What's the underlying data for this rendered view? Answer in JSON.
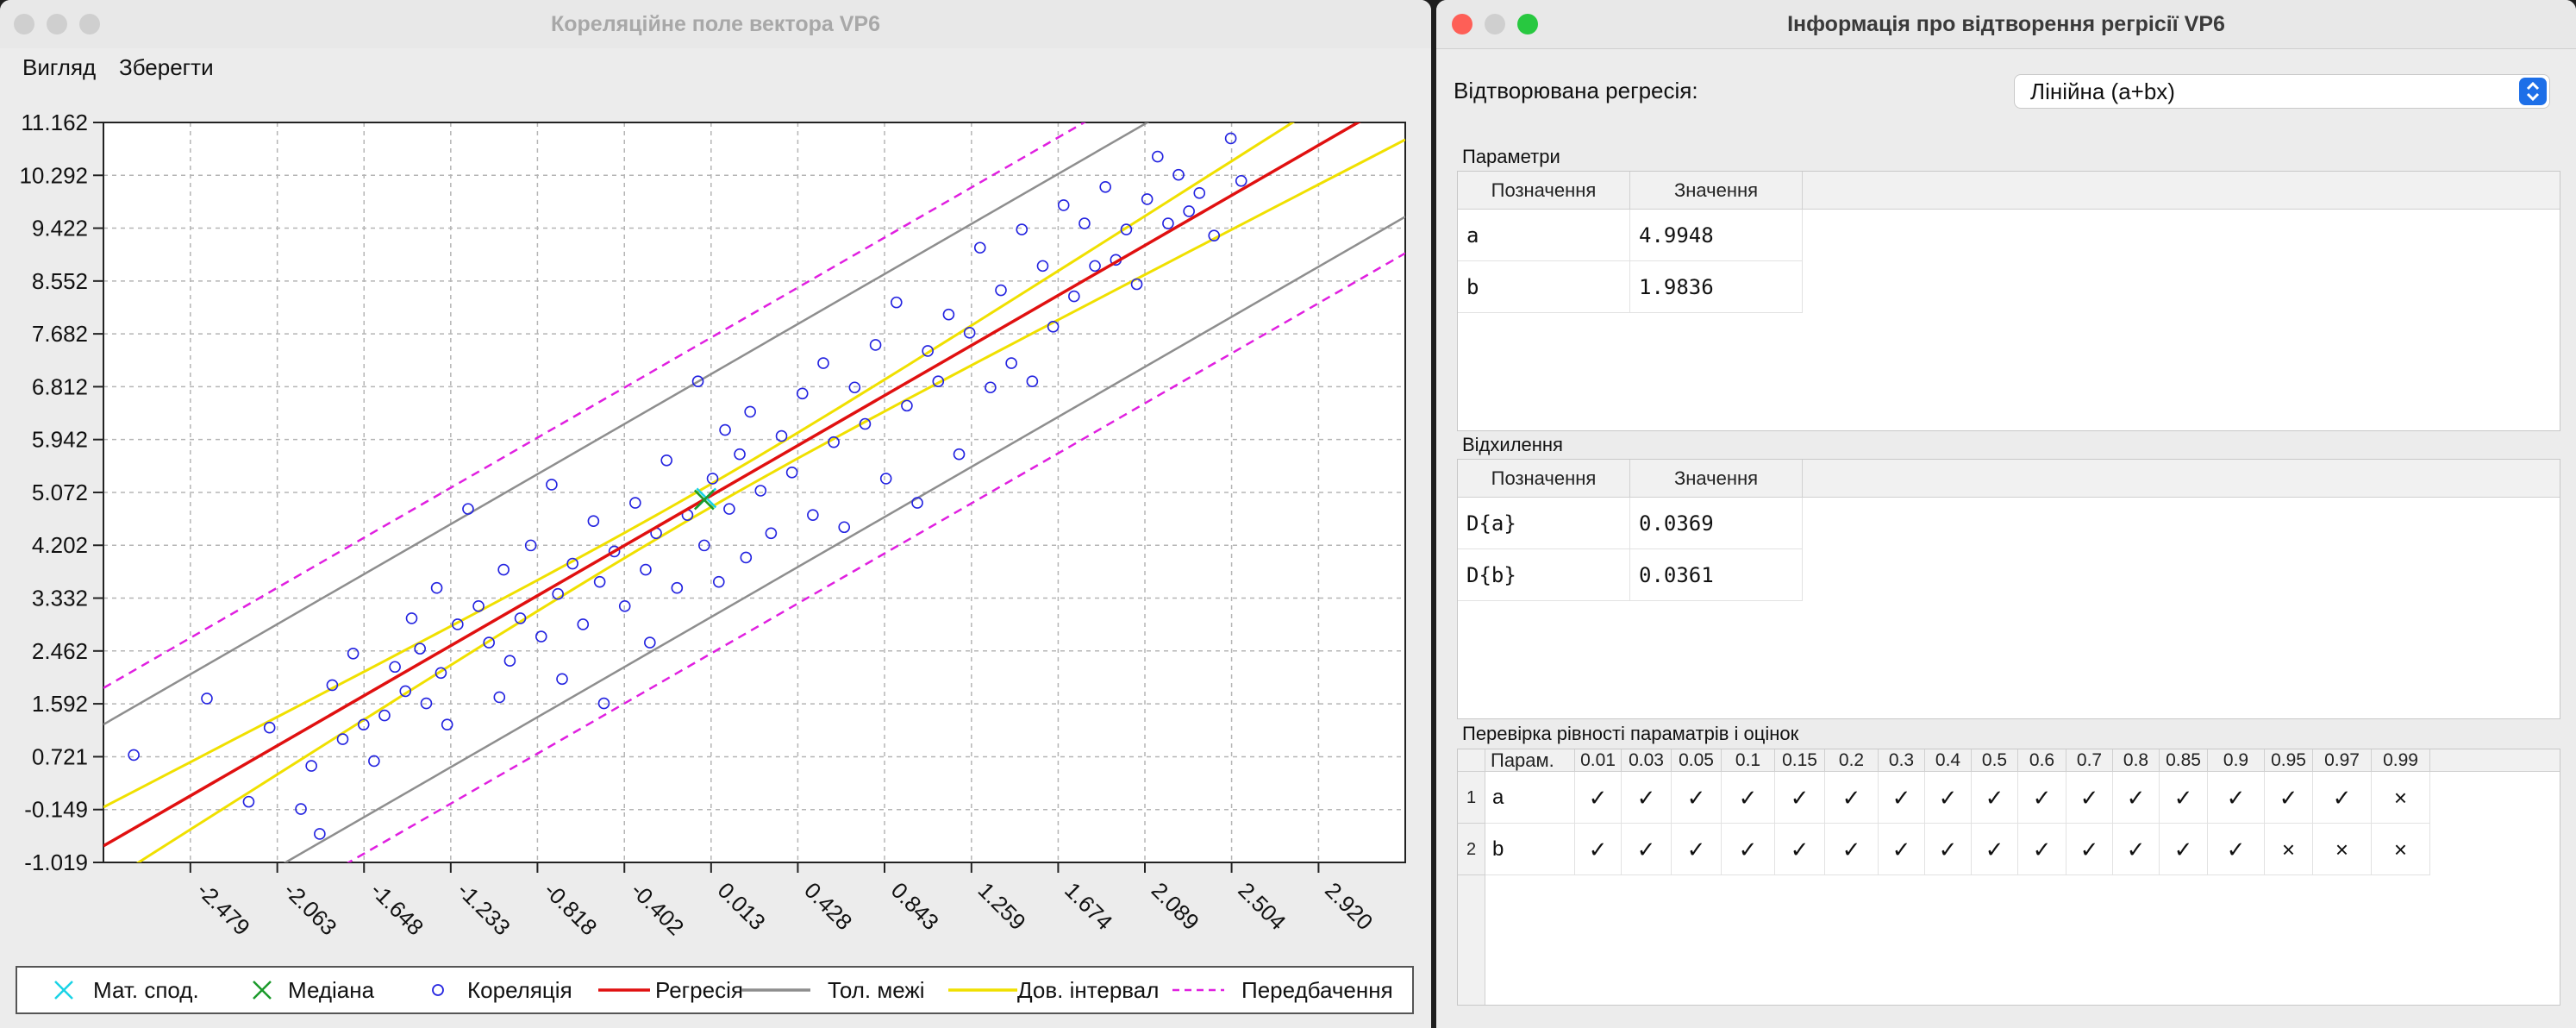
{
  "left_window": {
    "title": "Кореляційне поле вектора VP6",
    "menu": [
      "Вигляд",
      "Зберегти"
    ]
  },
  "right_window": {
    "title": "Інформація про відтворення регрісії VP6",
    "regression_label": "Відтворювана регресія:",
    "regression_value": "Лінійна (a+bx)"
  },
  "params_section": {
    "title": "Параметри",
    "headers": [
      "Позначення",
      "Значення"
    ],
    "rows": [
      [
        "a",
        "4.9948"
      ],
      [
        "b",
        "1.9836"
      ]
    ]
  },
  "deviation_section": {
    "title": "Відхилення",
    "headers": [
      "Позначення",
      "Значення"
    ],
    "rows": [
      [
        "D{a}",
        "0.0369"
      ],
      [
        "D{b}",
        "0.0361"
      ]
    ]
  },
  "check_section": {
    "title": "Перевірка рівності параматрів і оцінок",
    "param_header": "Парам.",
    "levels": [
      "0.01",
      "0.03",
      "0.05",
      "0.1",
      "0.15",
      "0.2",
      "0.3",
      "0.4",
      "0.5",
      "0.6",
      "0.7",
      "0.8",
      "0.85",
      "0.9",
      "0.95",
      "0.97",
      "0.99"
    ],
    "rows": [
      {
        "index": "1",
        "param": "a",
        "marks": [
          "✓",
          "✓",
          "✓",
          "✓",
          "✓",
          "✓",
          "✓",
          "✓",
          "✓",
          "✓",
          "✓",
          "✓",
          "✓",
          "✓",
          "✓",
          "✓",
          "×"
        ]
      },
      {
        "index": "2",
        "param": "b",
        "marks": [
          "✓",
          "✓",
          "✓",
          "✓",
          "✓",
          "✓",
          "✓",
          "✓",
          "✓",
          "✓",
          "✓",
          "✓",
          "✓",
          "✓",
          "×",
          "×",
          "×"
        ]
      }
    ]
  },
  "legend": [
    {
      "label": "Мат. спод.",
      "symbol": "x-cross",
      "color": "#19d3e6"
    },
    {
      "label": "Медіана",
      "symbol": "x-cross",
      "color": "#1a9a2a"
    },
    {
      "label": "Кореляція",
      "symbol": "circle",
      "color": "#2323e0"
    },
    {
      "label": "Регресія",
      "symbol": "line",
      "color": "#e01010"
    },
    {
      "label": "Тол. межі",
      "symbol": "line",
      "color": "#8e8e8e"
    },
    {
      "label": "Дов. інтервал",
      "symbol": "line",
      "color": "#f0e000"
    },
    {
      "label": "Передбачення",
      "symbol": "dashed",
      "color": "#e020e0"
    }
  ],
  "chart_data": {
    "type": "scatter",
    "x_ticks": [
      "-2.479",
      "-2.063",
      "-1.648",
      "-1.233",
      "-0.818",
      "-0.402",
      "0.013",
      "0.428",
      "0.843",
      "1.259",
      "1.674",
      "2.089",
      "2.504",
      "2.920"
    ],
    "y_ticks": [
      "11.162",
      "10.292",
      "9.422",
      "8.552",
      "7.682",
      "6.812",
      "5.942",
      "5.072",
      "4.202",
      "3.332",
      "2.462",
      "1.592",
      "0.721",
      "-0.149",
      "-1.019"
    ],
    "xlim": [
      -2.895,
      3.335
    ],
    "ylim": [
      -1.019,
      11.162
    ],
    "grid": true,
    "regression": {
      "a": 4.9948,
      "b": 1.9836
    },
    "mean": {
      "x": -0.01,
      "y": 4.98
    },
    "median": {
      "x": -0.02,
      "y": 4.95
    },
    "tolerance_offset": 2.0,
    "confidence_halfwidth_min": 0.19,
    "prediction_offset": 2.6,
    "series": [
      {
        "name": "Кореляція",
        "points": [
          [
            -2.75,
            0.75
          ],
          [
            -2.4,
            1.68
          ],
          [
            -2.2,
            -0.02
          ],
          [
            -2.1,
            1.2
          ],
          [
            -1.95,
            -0.14
          ],
          [
            -1.9,
            0.57
          ],
          [
            -1.86,
            -0.55
          ],
          [
            -1.8,
            1.9
          ],
          [
            -1.75,
            1.01
          ],
          [
            -1.7,
            2.42
          ],
          [
            -1.65,
            1.25
          ],
          [
            -1.6,
            0.65
          ],
          [
            -1.55,
            1.4
          ],
          [
            -1.5,
            2.2
          ],
          [
            -1.45,
            1.8
          ],
          [
            -1.42,
            3.0
          ],
          [
            -1.38,
            2.5
          ],
          [
            -1.35,
            1.6
          ],
          [
            -1.3,
            3.5
          ],
          [
            -1.28,
            2.1
          ],
          [
            -1.25,
            1.25
          ],
          [
            -1.2,
            2.9
          ],
          [
            -1.15,
            4.8
          ],
          [
            -1.1,
            3.2
          ],
          [
            -1.05,
            2.6
          ],
          [
            -1.0,
            1.7
          ],
          [
            -0.98,
            3.8
          ],
          [
            -0.95,
            2.3
          ],
          [
            -0.9,
            3.0
          ],
          [
            -0.85,
            4.2
          ],
          [
            -0.8,
            2.7
          ],
          [
            -0.75,
            5.2
          ],
          [
            -0.72,
            3.4
          ],
          [
            -0.7,
            2.0
          ],
          [
            -0.65,
            3.9
          ],
          [
            -0.6,
            2.9
          ],
          [
            -0.55,
            4.6
          ],
          [
            -0.52,
            3.6
          ],
          [
            -0.5,
            1.6
          ],
          [
            -0.45,
            4.1
          ],
          [
            -0.4,
            3.2
          ],
          [
            -0.35,
            4.9
          ],
          [
            -0.3,
            3.8
          ],
          [
            -0.28,
            2.6
          ],
          [
            -0.25,
            4.4
          ],
          [
            -0.2,
            5.6
          ],
          [
            -0.15,
            3.5
          ],
          [
            -0.1,
            4.7
          ],
          [
            -0.05,
            6.9
          ],
          [
            -0.02,
            4.2
          ],
          [
            0.02,
            5.3
          ],
          [
            0.05,
            3.6
          ],
          [
            0.08,
            6.1
          ],
          [
            0.1,
            4.8
          ],
          [
            0.15,
            5.7
          ],
          [
            0.18,
            4.0
          ],
          [
            0.2,
            6.4
          ],
          [
            0.25,
            5.1
          ],
          [
            0.3,
            4.4
          ],
          [
            0.35,
            6.0
          ],
          [
            0.4,
            5.4
          ],
          [
            0.45,
            6.7
          ],
          [
            0.5,
            4.7
          ],
          [
            0.55,
            7.2
          ],
          [
            0.6,
            5.9
          ],
          [
            0.65,
            4.5
          ],
          [
            0.7,
            6.8
          ],
          [
            0.75,
            6.2
          ],
          [
            0.8,
            7.5
          ],
          [
            0.85,
            5.3
          ],
          [
            0.9,
            8.2
          ],
          [
            0.95,
            6.5
          ],
          [
            1.0,
            4.9
          ],
          [
            1.05,
            7.4
          ],
          [
            1.1,
            6.9
          ],
          [
            1.15,
            8.0
          ],
          [
            1.2,
            5.7
          ],
          [
            1.25,
            7.7
          ],
          [
            1.3,
            9.1
          ],
          [
            1.35,
            6.8
          ],
          [
            1.4,
            8.4
          ],
          [
            1.45,
            7.2
          ],
          [
            1.5,
            9.4
          ],
          [
            1.55,
            6.9
          ],
          [
            1.6,
            8.8
          ],
          [
            1.65,
            7.8
          ],
          [
            1.7,
            9.8
          ],
          [
            1.75,
            8.3
          ],
          [
            1.8,
            9.5
          ],
          [
            1.85,
            8.8
          ],
          [
            1.9,
            10.1
          ],
          [
            1.95,
            8.9
          ],
          [
            2.0,
            9.4
          ],
          [
            2.05,
            8.5
          ],
          [
            2.1,
            9.9
          ],
          [
            2.15,
            10.6
          ],
          [
            2.2,
            9.5
          ],
          [
            2.25,
            10.3
          ],
          [
            2.3,
            9.7
          ],
          [
            2.35,
            10.0
          ],
          [
            2.42,
            9.3
          ],
          [
            2.5,
            10.9
          ],
          [
            2.55,
            10.2
          ]
        ]
      }
    ]
  }
}
